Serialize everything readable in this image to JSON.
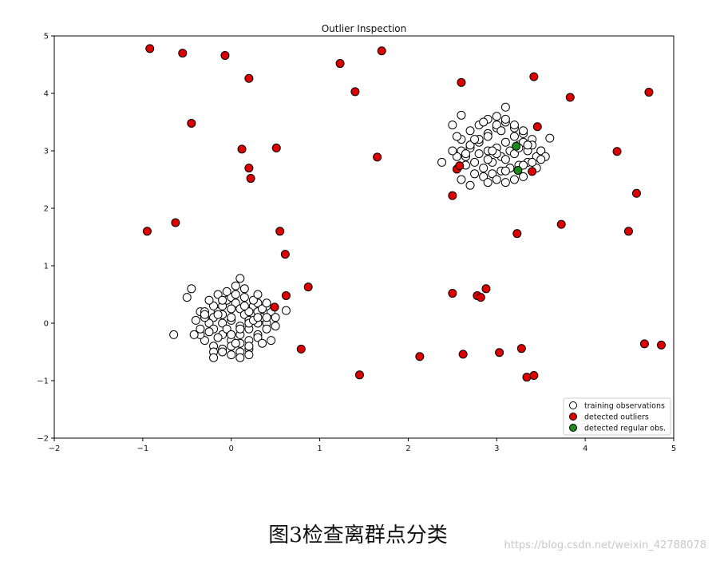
{
  "caption": "图3检查离群点分类",
  "watermark": "https://blog.csdn.net/weixin_42788078",
  "colors": {
    "training": "#ffffff",
    "outliers": "#dd0000",
    "regular": "#1a8c1a",
    "edge": "#000000"
  },
  "chart_data": {
    "type": "scatter",
    "title": "Outlier Inspection",
    "xlabel": "",
    "ylabel": "",
    "xlim": [
      -2,
      5
    ],
    "ylim": [
      -2,
      5
    ],
    "xticks": [
      -2,
      -1,
      0,
      1,
      2,
      3,
      4,
      5
    ],
    "yticks": [
      -2,
      -1,
      0,
      1,
      2,
      3,
      4,
      5
    ],
    "grid": false,
    "legend_position": "lower-right",
    "clusters_note_omitted": false,
    "series": [
      {
        "name": "training observations",
        "color": "#ffffff",
        "x": [
          -0.2,
          -0.15,
          -0.1,
          -0.05,
          0.0,
          0.05,
          0.1,
          0.15,
          0.2,
          0.25,
          0.3,
          0.35,
          0.4,
          -0.25,
          -0.3,
          -0.35,
          -0.2,
          -0.1,
          0.0,
          0.1,
          0.2,
          0.3,
          0.4,
          0.45,
          -0.3,
          -0.2,
          -0.1,
          0.0,
          0.1,
          0.2,
          0.3,
          0.4,
          -0.4,
          -0.3,
          -0.2,
          -0.1,
          0.0,
          0.1,
          0.2,
          0.3,
          0.4,
          0.5,
          -0.35,
          -0.25,
          -0.15,
          -0.05,
          0.05,
          0.15,
          0.25,
          0.35,
          -0.2,
          -0.1,
          0.0,
          0.1,
          0.2,
          0.3,
          0.0,
          0.1,
          -0.1,
          0.2,
          -0.45,
          -0.42,
          0.1,
          0.62,
          -0.65,
          -0.5,
          0.2,
          0.05,
          -0.15,
          0.3,
          0.45,
          0.5,
          -0.3,
          0.15,
          -0.05,
          0.25,
          0.35,
          0.0,
          -0.2,
          0.1,
          -0.35,
          0.4,
          0.2,
          -0.1,
          0.3,
          0.0,
          -0.25,
          0.15,
          0.05,
          -0.15,
          2.6,
          2.7,
          2.8,
          2.9,
          3.0,
          3.1,
          3.2,
          3.3,
          3.4,
          2.65,
          2.75,
          2.85,
          2.95,
          3.05,
          3.15,
          3.25,
          3.35,
          3.45,
          2.6,
          2.7,
          2.8,
          2.9,
          3.0,
          3.1,
          3.2,
          3.3,
          3.4,
          3.5,
          2.55,
          2.65,
          2.75,
          2.85,
          2.95,
          3.05,
          3.15,
          3.25,
          3.35,
          2.7,
          2.8,
          2.9,
          3.0,
          3.1,
          3.2,
          3.3,
          2.8,
          2.9,
          3.0,
          3.1,
          3.2,
          2.5,
          2.55,
          3.5,
          3.55,
          2.6,
          3.45,
          2.9,
          3.0,
          3.1,
          3.2,
          3.3,
          3.0,
          2.8,
          3.4,
          2.7,
          2.38,
          2.6,
          3.1,
          3.6,
          2.5,
          3.5,
          2.85,
          3.05,
          2.95,
          3.25,
          2.75,
          3.15,
          3.35,
          2.65,
          2.9,
          3.1,
          3.3,
          2.7
        ],
        "y": [
          0.1,
          0.2,
          0.3,
          0.4,
          0.45,
          0.35,
          0.25,
          0.15,
          0.05,
          0.3,
          0.2,
          0.1,
          0.0,
          0.0,
          0.1,
          0.2,
          -0.1,
          -0.2,
          -0.3,
          -0.2,
          -0.1,
          -0.2,
          -0.1,
          0.2,
          -0.3,
          -0.4,
          -0.45,
          -0.4,
          -0.35,
          -0.3,
          -0.25,
          0.1,
          0.05,
          0.2,
          0.3,
          0.15,
          0.05,
          -0.05,
          0.2,
          0.35,
          0.3,
          0.1,
          -0.2,
          0.4,
          0.5,
          0.55,
          0.5,
          0.45,
          0.4,
          -0.35,
          -0.5,
          -0.5,
          -0.55,
          -0.5,
          -0.45,
          0.5,
          0.1,
          -0.1,
          0.0,
          0.0,
          0.6,
          -0.2,
          0.78,
          0.22,
          -0.2,
          0.45,
          -0.55,
          0.65,
          -0.25,
          0.0,
          -0.3,
          -0.05,
          0.15,
          0.3,
          -0.1,
          0.05,
          0.25,
          -0.2,
          -0.6,
          -0.6,
          -0.1,
          0.35,
          -0.4,
          0.4,
          0.1,
          0.25,
          -0.15,
          0.6,
          -0.35,
          0.15,
          3.0,
          3.1,
          3.2,
          3.3,
          3.4,
          3.5,
          3.4,
          3.3,
          3.2,
          2.9,
          2.8,
          2.7,
          2.8,
          2.9,
          3.0,
          3.1,
          3.0,
          2.9,
          3.2,
          3.35,
          3.45,
          3.55,
          3.6,
          3.55,
          3.45,
          3.35,
          3.1,
          3.0,
          2.9,
          2.75,
          2.6,
          2.55,
          2.6,
          2.65,
          2.7,
          2.75,
          2.8,
          3.05,
          3.15,
          3.25,
          3.05,
          3.15,
          3.25,
          3.15,
          2.95,
          3.0,
          2.95,
          2.85,
          2.95,
          3.0,
          3.25,
          3.0,
          2.9,
          2.5,
          2.7,
          2.45,
          2.5,
          2.45,
          2.5,
          2.55,
          3.45,
          3.2,
          2.8,
          3.1,
          2.8,
          3.62,
          3.76,
          3.22,
          3.45,
          2.85,
          3.5,
          3.35,
          3.0,
          3.05,
          3.2,
          2.7,
          3.1,
          2.95,
          2.85,
          2.65,
          2.75,
          2.4
        ],
        "marker": "circle"
      },
      {
        "name": "detected outliers",
        "color": "#dd0000",
        "x": [
          -0.92,
          -0.55,
          -0.07,
          0.2,
          -0.45,
          0.12,
          0.2,
          0.22,
          0.51,
          -0.63,
          -0.95,
          0.55,
          0.61,
          0.62,
          0.87,
          0.49,
          0.79,
          1.23,
          1.4,
          1.7,
          1.65,
          1.45,
          2.13,
          2.5,
          2.5,
          2.55,
          2.58,
          2.6,
          2.62,
          2.78,
          2.82,
          2.88,
          3.03,
          3.23,
          3.28,
          3.34,
          3.42,
          3.4,
          3.46,
          3.42,
          3.73,
          3.83,
          4.36,
          4.49,
          4.58,
          4.67,
          4.72,
          4.86
        ],
        "y": [
          4.78,
          4.7,
          4.66,
          4.26,
          3.48,
          3.03,
          2.7,
          2.52,
          3.05,
          1.75,
          1.6,
          1.6,
          1.2,
          0.48,
          0.63,
          0.28,
          -0.45,
          4.52,
          4.03,
          4.74,
          2.89,
          -0.9,
          -0.58,
          2.22,
          0.52,
          2.68,
          2.74,
          4.19,
          -0.54,
          0.48,
          0.45,
          0.6,
          -0.51,
          1.56,
          -0.44,
          -0.94,
          -0.91,
          2.64,
          3.42,
          4.29,
          1.72,
          3.93,
          2.99,
          1.6,
          2.26,
          -0.36,
          4.02,
          -0.38
        ],
        "marker": "circle"
      },
      {
        "name": "detected regular obs.",
        "color": "#1a8c1a",
        "x": [
          3.22,
          3.24
        ],
        "y": [
          3.08,
          2.66
        ],
        "marker": "circle"
      }
    ]
  }
}
